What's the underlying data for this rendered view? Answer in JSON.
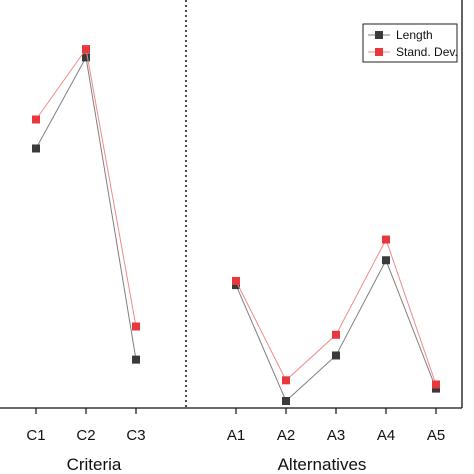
{
  "chart_data": {
    "type": "line",
    "categories": [
      "C1",
      "C2",
      "C3",
      "A1",
      "A2",
      "A3",
      "A4",
      "A5"
    ],
    "groups": [
      {
        "label": "Criteria",
        "categories": [
          "C1",
          "C2",
          "C3"
        ]
      },
      {
        "label": "Alternatives",
        "categories": [
          "A1",
          "A2",
          "A3",
          "A4",
          "A5"
        ]
      }
    ],
    "series": [
      {
        "name": "Length",
        "color": "#3a3a3a",
        "line_color": "#7f7f7f",
        "values": [
          0.68,
          0.9,
          0.17,
          0.35,
          0.07,
          0.18,
          0.41,
          0.1
        ]
      },
      {
        "name": "Stand. Dev.",
        "color": "#e8383d",
        "line_color": "#f08a8a",
        "values": [
          0.75,
          0.92,
          0.25,
          0.36,
          0.12,
          0.23,
          0.46,
          0.11
        ]
      }
    ],
    "ylim": [
      0,
      1
    ],
    "y_axis_labels": false,
    "legend_position": "top-right",
    "grid": false
  }
}
